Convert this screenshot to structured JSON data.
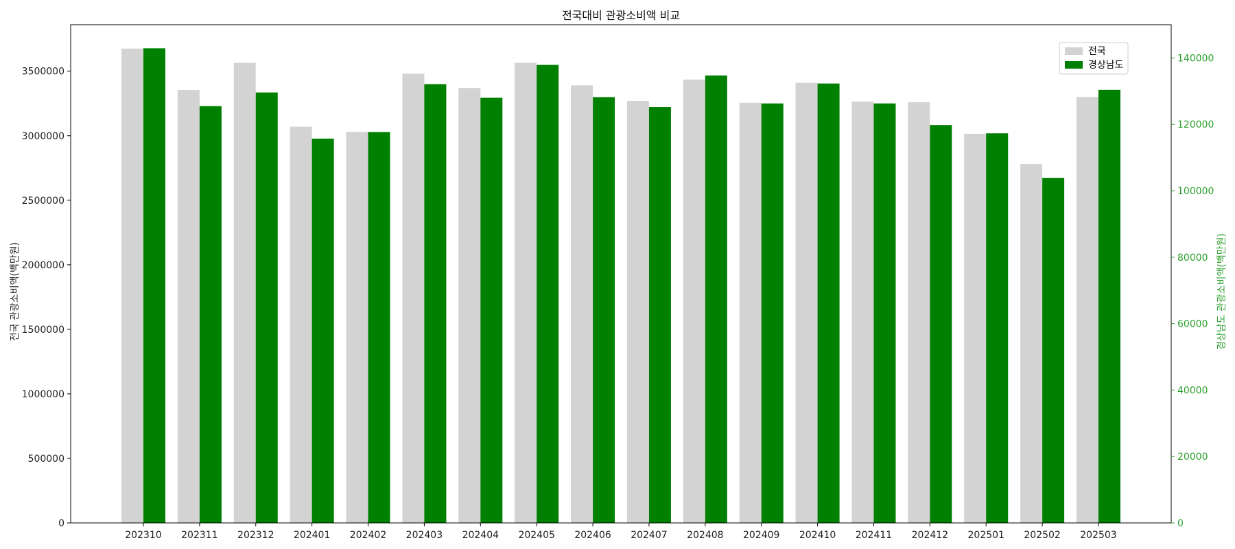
{
  "chart_data": {
    "type": "bar",
    "title": "전국대비 관광소비액 비교",
    "categories": [
      "202310",
      "202311",
      "202312",
      "202401",
      "202402",
      "202403",
      "202404",
      "202405",
      "202406",
      "202407",
      "202408",
      "202409",
      "202410",
      "202411",
      "202412",
      "202501",
      "202502",
      "202503"
    ],
    "series": [
      {
        "name": "전국",
        "axis": "left",
        "color": "#d3d3d3",
        "values": [
          3675000,
          3355000,
          3565000,
          3070000,
          3030000,
          3480000,
          3370000,
          3565000,
          3390000,
          3270000,
          3435000,
          3255000,
          3410000,
          3265000,
          3260000,
          3015000,
          2780000,
          3300000
        ]
      },
      {
        "name": "경상남도",
        "axis": "right",
        "color": "#008000",
        "values": [
          142900,
          125500,
          129600,
          115700,
          117700,
          132100,
          128000,
          137900,
          128200,
          125200,
          134700,
          126300,
          132300,
          126300,
          119800,
          117300,
          103900,
          130400
        ]
      }
    ],
    "ylabel_left": "전국 관광소비액(백만원)",
    "ylabel_right": "경상남도 관광소비액(백만원)",
    "ylim_left": [
      0,
      3860000
    ],
    "ylim_right": [
      0,
      150000
    ],
    "yticks_left": [
      0,
      500000,
      1000000,
      1500000,
      2000000,
      2500000,
      3000000,
      3500000
    ],
    "yticks_right": [
      0,
      20000,
      40000,
      60000,
      80000,
      100000,
      120000,
      140000
    ],
    "right_axis_color": "#2ca02c",
    "legend_position": "upper right",
    "grid": false
  }
}
